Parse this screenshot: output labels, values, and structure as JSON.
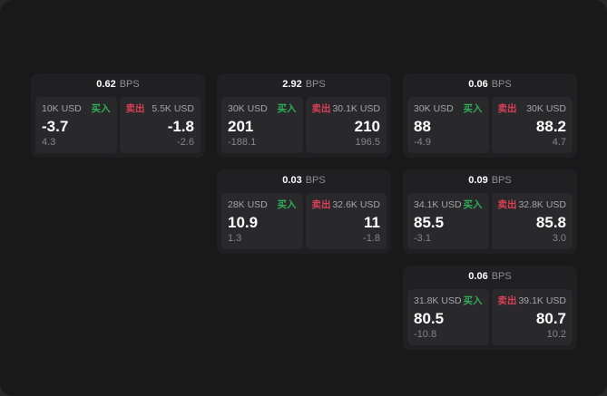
{
  "app": {
    "unit_label": "BPS",
    "buy_label": "买入",
    "sell_label": "卖出",
    "colors": {
      "buy": "#2eae57",
      "sell": "#d94057",
      "page_bg": "#191919",
      "card_bg": "#202022",
      "panel_bg": "#29292b"
    }
  },
  "cards": [
    {
      "bps": "0.62",
      "buy": {
        "amount": "10K USD",
        "main": "-3.7",
        "sub": "4.3"
      },
      "sell": {
        "amount": "5.5K USD",
        "main": "-1.8",
        "sub": "-2.6"
      }
    },
    {
      "bps": "2.92",
      "buy": {
        "amount": "30K USD",
        "main": "201",
        "sub": "-188.1"
      },
      "sell": {
        "amount": "30.1K USD",
        "main": "210",
        "sub": "196.5"
      }
    },
    {
      "bps": "0.06",
      "buy": {
        "amount": "30K USD",
        "main": "88",
        "sub": "-4.9"
      },
      "sell": {
        "amount": "30K USD",
        "main": "88.2",
        "sub": "4.7"
      }
    },
    {
      "bps": "0.03",
      "buy": {
        "amount": "28K USD",
        "main": "10.9",
        "sub": "1.3"
      },
      "sell": {
        "amount": "32.6K USD",
        "main": "11",
        "sub": "-1.8"
      }
    },
    {
      "bps": "0.09",
      "buy": {
        "amount": "34.1K USD",
        "main": "85.5",
        "sub": "-3.1"
      },
      "sell": {
        "amount": "32.8K USD",
        "main": "85.8",
        "sub": "3.0"
      }
    },
    {
      "bps": "0.06",
      "buy": {
        "amount": "31.8K USD",
        "main": "80.5",
        "sub": "-10.8"
      },
      "sell": {
        "amount": "39.1K USD",
        "main": "80.7",
        "sub": "10.2"
      }
    }
  ]
}
